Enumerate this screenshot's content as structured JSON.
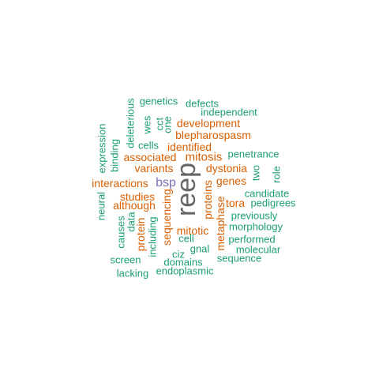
{
  "palette": {
    "teal": "#1b9e77",
    "orange": "#d95f02",
    "purple": "#7570b3",
    "gray": "#666666"
  },
  "words": [
    {
      "id": "reep",
      "text": "reep",
      "color": "gray",
      "size": 34,
      "orient": "v"
    },
    {
      "id": "bsp",
      "text": "bsp",
      "color": "purple",
      "size": 16,
      "orient": "h"
    },
    {
      "id": "mitosis",
      "text": "mitosis",
      "color": "orange",
      "size": 15,
      "orient": "h"
    },
    {
      "id": "development",
      "text": "development",
      "color": "orange",
      "size": 14,
      "orient": "h"
    },
    {
      "id": "blepharospasm",
      "text": "blepharospasm",
      "color": "orange",
      "size": 14,
      "orient": "h"
    },
    {
      "id": "identified",
      "text": "identified",
      "color": "orange",
      "size": 14,
      "orient": "h"
    },
    {
      "id": "associated",
      "text": "associated",
      "color": "orange",
      "size": 14,
      "orient": "h"
    },
    {
      "id": "variants",
      "text": "variants",
      "color": "orange",
      "size": 14,
      "orient": "h"
    },
    {
      "id": "dystonia",
      "text": "dystonia",
      "color": "orange",
      "size": 14,
      "orient": "h"
    },
    {
      "id": "genes",
      "text": "genes",
      "color": "orange",
      "size": 14,
      "orient": "h"
    },
    {
      "id": "interactions",
      "text": "interactions",
      "color": "orange",
      "size": 14,
      "orient": "h"
    },
    {
      "id": "studies",
      "text": "studies",
      "color": "orange",
      "size": 14,
      "orient": "h"
    },
    {
      "id": "although",
      "text": "although",
      "color": "orange",
      "size": 14,
      "orient": "h"
    },
    {
      "id": "tora",
      "text": "tora",
      "color": "orange",
      "size": 14,
      "orient": "h"
    },
    {
      "id": "mitotic",
      "text": "mitotic",
      "color": "orange",
      "size": 14,
      "orient": "h"
    },
    {
      "id": "proteins",
      "text": "proteins",
      "color": "orange",
      "size": 14,
      "orient": "v"
    },
    {
      "id": "sequencing",
      "text": "sequencing",
      "color": "orange",
      "size": 14,
      "orient": "v"
    },
    {
      "id": "protein",
      "text": "protein",
      "color": "orange",
      "size": 14,
      "orient": "v"
    },
    {
      "id": "metaphase",
      "text": "metaphase",
      "color": "orange",
      "size": 14,
      "orient": "v"
    },
    {
      "id": "genetics",
      "text": "genetics",
      "color": "teal",
      "size": 13,
      "orient": "h"
    },
    {
      "id": "defects",
      "text": "defects",
      "color": "teal",
      "size": 13,
      "orient": "h"
    },
    {
      "id": "independent",
      "text": "independent",
      "color": "teal",
      "size": 13,
      "orient": "h"
    },
    {
      "id": "cells",
      "text": "cells",
      "color": "teal",
      "size": 13,
      "orient": "h"
    },
    {
      "id": "penetrance",
      "text": "penetrance",
      "color": "teal",
      "size": 13,
      "orient": "h"
    },
    {
      "id": "candidate",
      "text": "candidate",
      "color": "teal",
      "size": 13,
      "orient": "h"
    },
    {
      "id": "pedigrees",
      "text": "pedigrees",
      "color": "teal",
      "size": 13,
      "orient": "h"
    },
    {
      "id": "previously",
      "text": "previously",
      "color": "teal",
      "size": 13,
      "orient": "h"
    },
    {
      "id": "morphology",
      "text": "morphology",
      "color": "teal",
      "size": 13,
      "orient": "h"
    },
    {
      "id": "performed",
      "text": "performed",
      "color": "teal",
      "size": 13,
      "orient": "h"
    },
    {
      "id": "molecular",
      "text": "molecular",
      "color": "teal",
      "size": 13,
      "orient": "h"
    },
    {
      "id": "sequence",
      "text": "sequence",
      "color": "teal",
      "size": 13,
      "orient": "h"
    },
    {
      "id": "cell",
      "text": "cell",
      "color": "teal",
      "size": 13,
      "orient": "h"
    },
    {
      "id": "gnal",
      "text": "gnal",
      "color": "teal",
      "size": 13,
      "orient": "h"
    },
    {
      "id": "ciz",
      "text": "ciz",
      "color": "teal",
      "size": 13,
      "orient": "h"
    },
    {
      "id": "domains",
      "text": "domains",
      "color": "teal",
      "size": 13,
      "orient": "h"
    },
    {
      "id": "screen",
      "text": "screen",
      "color": "teal",
      "size": 13,
      "orient": "h"
    },
    {
      "id": "lacking",
      "text": "lacking",
      "color": "teal",
      "size": 13,
      "orient": "h"
    },
    {
      "id": "endoplasmic",
      "text": "endoplasmic",
      "color": "teal",
      "size": 13,
      "orient": "h"
    },
    {
      "id": "deleterious",
      "text": "deleterious",
      "color": "teal",
      "size": 13,
      "orient": "v"
    },
    {
      "id": "wes",
      "text": "wes",
      "color": "teal",
      "size": 13,
      "orient": "v"
    },
    {
      "id": "cct",
      "text": "cct",
      "color": "teal",
      "size": 13,
      "orient": "v"
    },
    {
      "id": "one",
      "text": "one",
      "color": "teal",
      "size": 13,
      "orient": "v"
    },
    {
      "id": "expression",
      "text": "expression",
      "color": "teal",
      "size": 13,
      "orient": "v"
    },
    {
      "id": "binding",
      "text": "binding",
      "color": "teal",
      "size": 13,
      "orient": "v"
    },
    {
      "id": "two",
      "text": "two",
      "color": "teal",
      "size": 13,
      "orient": "v"
    },
    {
      "id": "role",
      "text": "role",
      "color": "teal",
      "size": 13,
      "orient": "v"
    },
    {
      "id": "neural",
      "text": "neural",
      "color": "teal",
      "size": 13,
      "orient": "v"
    },
    {
      "id": "causes",
      "text": "causes",
      "color": "teal",
      "size": 13,
      "orient": "v"
    },
    {
      "id": "data",
      "text": "data",
      "color": "teal",
      "size": 13,
      "orient": "v"
    },
    {
      "id": "including",
      "text": "including",
      "color": "teal",
      "size": 13,
      "orient": "v"
    }
  ]
}
